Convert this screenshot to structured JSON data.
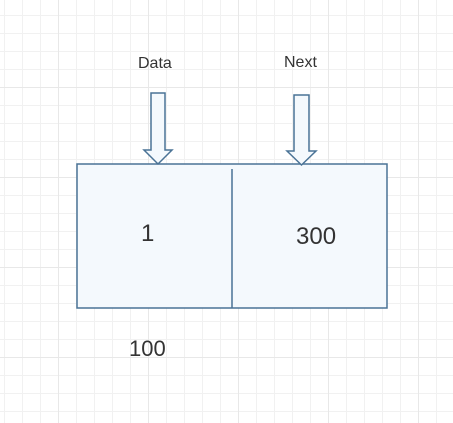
{
  "node": {
    "field_labels": {
      "data": "Data",
      "next": "Next"
    },
    "cells": {
      "data_value": "1",
      "next_value": "300"
    },
    "address": "100"
  },
  "colors": {
    "stroke": "#4a7396",
    "fill": "#f4f9fd",
    "text": "#333333",
    "grid": "#e8e8e8"
  }
}
